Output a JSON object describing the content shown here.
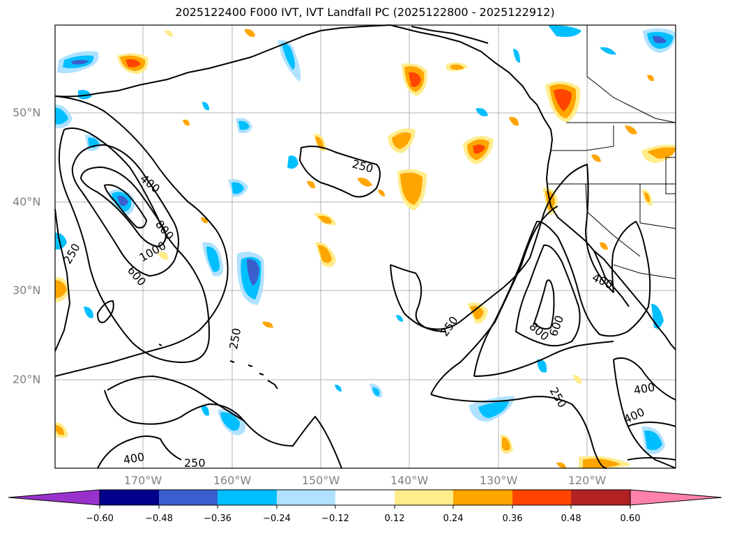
{
  "title": "2025122400 F000 IVT, IVT Landfall PC (2025122800 - 2025122912)",
  "map": {
    "lat_labels": [
      "50°N",
      "40°N",
      "30°N",
      "20°N"
    ],
    "lon_labels": [
      "170°W",
      "160°W",
      "150°W",
      "140°W",
      "130°W",
      "120°W"
    ],
    "contour_labels": [
      "250",
      "400",
      "800",
      "1000",
      "600",
      "250",
      "250",
      "250",
      "400",
      "800",
      "600",
      "250",
      "400",
      "400",
      "400",
      "250"
    ]
  },
  "colorbar": {
    "colors": [
      "#9932cc",
      "#00008b",
      "#3a5fcd",
      "#00bfff",
      "#b0e2ff",
      "#ffffff",
      "#ffec8b",
      "#ffa500",
      "#ff4500",
      "#b22222",
      "#ff82ab"
    ],
    "tick_labels": [
      "−0.60",
      "−0.48",
      "−0.36",
      "−0.24",
      "−0.12",
      "0.12",
      "0.24",
      "0.36",
      "0.48",
      "0.60"
    ]
  },
  "palette": {
    "land": "#000000",
    "grid": "#b0b0b0",
    "contour": "#000000"
  }
}
